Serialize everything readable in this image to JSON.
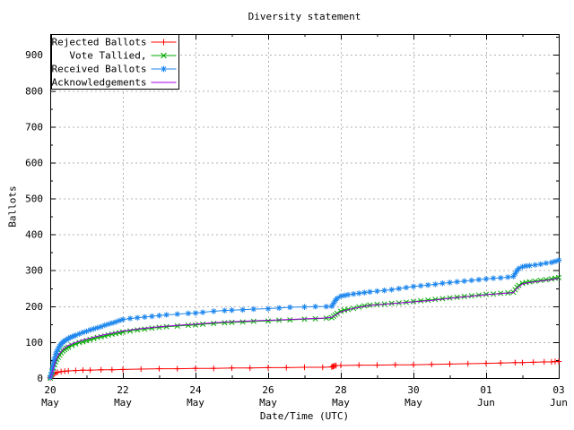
{
  "chart_data": {
    "type": "line",
    "title": "Diversity statement",
    "xlabel": "Date/Time (UTC)",
    "ylabel": "Ballots",
    "x_unit": "days since 20 May 00:00 (UTC)",
    "xlim": [
      0,
      14
    ],
    "ylim": [
      0,
      958
    ],
    "grid": true,
    "legend_position": "top-left",
    "colors": {
      "background": "#ffffff",
      "border": "#000000",
      "grid": "#b3b3b3",
      "rejected": "#ff0000",
      "tallied": "#00a800",
      "received": "#1c86ee",
      "acknowledgements": "#a000e0"
    },
    "y_major_ticks": [
      0,
      100,
      200,
      300,
      400,
      500,
      600,
      700,
      800,
      900
    ],
    "y_minor_step": 50,
    "x_minor_step": 1,
    "x_major_ticks": [
      {
        "day": 0,
        "line1": "20",
        "line2": "May"
      },
      {
        "day": 2,
        "line1": "22",
        "line2": "May"
      },
      {
        "day": 4,
        "line1": "24",
        "line2": "May"
      },
      {
        "day": 6,
        "line1": "26",
        "line2": "May"
      },
      {
        "day": 8,
        "line1": "28",
        "line2": "May"
      },
      {
        "day": 10,
        "line1": "30",
        "line2": "May"
      },
      {
        "day": 12,
        "line1": "01",
        "line2": "Jun"
      },
      {
        "day": 14,
        "line1": "03",
        "line2": "Jun"
      }
    ],
    "series": [
      {
        "name": "Rejected Ballots",
        "color_key": "rejected",
        "marker": "plus",
        "points": [
          [
            0,
            0
          ],
          [
            0.05,
            6
          ],
          [
            0.1,
            11
          ],
          [
            0.15,
            14
          ],
          [
            0.2,
            16
          ],
          [
            0.3,
            18
          ],
          [
            0.4,
            19
          ],
          [
            0.5,
            20
          ],
          [
            0.7,
            21
          ],
          [
            0.9,
            22
          ],
          [
            1.1,
            22
          ],
          [
            1.4,
            23
          ],
          [
            1.7,
            23
          ],
          [
            2,
            24
          ],
          [
            2.5,
            25
          ],
          [
            3,
            26
          ],
          [
            3.5,
            26
          ],
          [
            4,
            27
          ],
          [
            4.5,
            27
          ],
          [
            5,
            28
          ],
          [
            5.5,
            28
          ],
          [
            6,
            29
          ],
          [
            6.5,
            29
          ],
          [
            7,
            30
          ],
          [
            7.5,
            30
          ],
          [
            7.75,
            31
          ],
          [
            7.78,
            32
          ],
          [
            7.8,
            33
          ],
          [
            7.83,
            34
          ],
          [
            7.87,
            35
          ],
          [
            8,
            35
          ],
          [
            8.5,
            36
          ],
          [
            9,
            36
          ],
          [
            9.5,
            37
          ],
          [
            10,
            37
          ],
          [
            10.5,
            38
          ],
          [
            11,
            39
          ],
          [
            11.5,
            40
          ],
          [
            12,
            41
          ],
          [
            12.4,
            42
          ],
          [
            12.8,
            43
          ],
          [
            13,
            43
          ],
          [
            13.3,
            44
          ],
          [
            13.6,
            45
          ],
          [
            13.8,
            45
          ],
          [
            13.9,
            46
          ],
          [
            14,
            46
          ]
        ]
      },
      {
        "name": "Vote Tallied,",
        "color_key": "tallied",
        "marker": "cross",
        "points": [
          [
            0,
            0
          ],
          [
            0.03,
            8
          ],
          [
            0.06,
            18
          ],
          [
            0.09,
            28
          ],
          [
            0.12,
            37
          ],
          [
            0.15,
            45
          ],
          [
            0.18,
            52
          ],
          [
            0.22,
            58
          ],
          [
            0.26,
            64
          ],
          [
            0.3,
            70
          ],
          [
            0.35,
            75
          ],
          [
            0.4,
            79
          ],
          [
            0.45,
            83
          ],
          [
            0.5,
            86
          ],
          [
            0.6,
            91
          ],
          [
            0.7,
            95
          ],
          [
            0.8,
            99
          ],
          [
            0.9,
            101
          ],
          [
            1,
            104
          ],
          [
            1.1,
            107
          ],
          [
            1.2,
            110
          ],
          [
            1.3,
            113
          ],
          [
            1.4,
            115
          ],
          [
            1.5,
            117
          ],
          [
            1.6,
            120
          ],
          [
            1.7,
            122
          ],
          [
            1.8,
            124
          ],
          [
            1.9,
            126
          ],
          [
            2,
            128
          ],
          [
            2.2,
            131
          ],
          [
            2.4,
            134
          ],
          [
            2.6,
            136
          ],
          [
            2.8,
            139
          ],
          [
            3,
            141
          ],
          [
            3.2,
            143
          ],
          [
            3.5,
            145
          ],
          [
            3.8,
            147
          ],
          [
            4,
            148
          ],
          [
            4.2,
            150
          ],
          [
            4.5,
            152
          ],
          [
            4.8,
            154
          ],
          [
            5,
            155
          ],
          [
            5.3,
            156
          ],
          [
            5.6,
            158
          ],
          [
            6,
            159
          ],
          [
            6.3,
            161
          ],
          [
            6.6,
            162
          ],
          [
            7,
            164
          ],
          [
            7.3,
            165
          ],
          [
            7.6,
            167
          ],
          [
            7.75,
            168
          ],
          [
            7.8,
            172
          ],
          [
            7.85,
            176
          ],
          [
            7.9,
            180
          ],
          [
            8,
            186
          ],
          [
            8.1,
            189
          ],
          [
            8.2,
            191
          ],
          [
            8.35,
            194
          ],
          [
            8.5,
            198
          ],
          [
            8.65,
            201
          ],
          [
            8.8,
            203
          ],
          [
            9,
            205
          ],
          [
            9.2,
            206
          ],
          [
            9.4,
            208
          ],
          [
            9.6,
            209
          ],
          [
            9.8,
            211
          ],
          [
            10,
            213
          ],
          [
            10.2,
            215
          ],
          [
            10.4,
            217
          ],
          [
            10.6,
            219
          ],
          [
            10.8,
            221
          ],
          [
            11,
            223
          ],
          [
            11.2,
            225
          ],
          [
            11.4,
            227
          ],
          [
            11.6,
            229
          ],
          [
            11.8,
            231
          ],
          [
            12,
            233
          ],
          [
            12.2,
            234
          ],
          [
            12.4,
            236
          ],
          [
            12.6,
            237
          ],
          [
            12.75,
            239
          ],
          [
            12.8,
            246
          ],
          [
            12.85,
            253
          ],
          [
            12.9,
            258
          ],
          [
            13,
            264
          ],
          [
            13.1,
            266
          ],
          [
            13.2,
            268
          ],
          [
            13.35,
            270
          ],
          [
            13.5,
            272
          ],
          [
            13.65,
            274
          ],
          [
            13.8,
            276
          ],
          [
            13.9,
            278
          ],
          [
            14,
            280
          ]
        ]
      },
      {
        "name": "Received Ballots",
        "color_key": "received",
        "marker": "asterisk",
        "points": [
          [
            0,
            2
          ],
          [
            0.02,
            8
          ],
          [
            0.04,
            16
          ],
          [
            0.06,
            26
          ],
          [
            0.08,
            36
          ],
          [
            0.1,
            46
          ],
          [
            0.12,
            55
          ],
          [
            0.15,
            66
          ],
          [
            0.18,
            74
          ],
          [
            0.22,
            82
          ],
          [
            0.26,
            89
          ],
          [
            0.3,
            95
          ],
          [
            0.35,
            100
          ],
          [
            0.4,
            104
          ],
          [
            0.45,
            107
          ],
          [
            0.5,
            110
          ],
          [
            0.55,
            113
          ],
          [
            0.6,
            115
          ],
          [
            0.65,
            117
          ],
          [
            0.7,
            119
          ],
          [
            0.8,
            123
          ],
          [
            0.9,
            127
          ],
          [
            1,
            130
          ],
          [
            1.1,
            134
          ],
          [
            1.2,
            137
          ],
          [
            1.3,
            140
          ],
          [
            1.4,
            143
          ],
          [
            1.5,
            147
          ],
          [
            1.6,
            150
          ],
          [
            1.7,
            153
          ],
          [
            1.8,
            156
          ],
          [
            1.9,
            160
          ],
          [
            2,
            163
          ],
          [
            2.2,
            166
          ],
          [
            2.4,
            168
          ],
          [
            2.6,
            170
          ],
          [
            2.8,
            172
          ],
          [
            3,
            174
          ],
          [
            3.2,
            176
          ],
          [
            3.5,
            178
          ],
          [
            3.8,
            180
          ],
          [
            4,
            181
          ],
          [
            4.2,
            183
          ],
          [
            4.5,
            186
          ],
          [
            4.8,
            188
          ],
          [
            5,
            189
          ],
          [
            5.3,
            190
          ],
          [
            5.6,
            192
          ],
          [
            6,
            193
          ],
          [
            6.3,
            195
          ],
          [
            6.6,
            197
          ],
          [
            7,
            198
          ],
          [
            7.3,
            199
          ],
          [
            7.6,
            199
          ],
          [
            7.75,
            200
          ],
          [
            7.8,
            208
          ],
          [
            7.85,
            216
          ],
          [
            7.9,
            222
          ],
          [
            8,
            228
          ],
          [
            8.1,
            230
          ],
          [
            8.2,
            232
          ],
          [
            8.35,
            234
          ],
          [
            8.5,
            236
          ],
          [
            8.65,
            238
          ],
          [
            8.8,
            240
          ],
          [
            9,
            242
          ],
          [
            9.2,
            244
          ],
          [
            9.4,
            246
          ],
          [
            9.6,
            249
          ],
          [
            9.8,
            252
          ],
          [
            10,
            255
          ],
          [
            10.2,
            257
          ],
          [
            10.4,
            259
          ],
          [
            10.6,
            261
          ],
          [
            10.8,
            264
          ],
          [
            11,
            266
          ],
          [
            11.2,
            268
          ],
          [
            11.4,
            270
          ],
          [
            11.6,
            272
          ],
          [
            11.8,
            274
          ],
          [
            12,
            276
          ],
          [
            12.2,
            278
          ],
          [
            12.4,
            279
          ],
          [
            12.6,
            281
          ],
          [
            12.75,
            283
          ],
          [
            12.8,
            291
          ],
          [
            12.85,
            299
          ],
          [
            12.9,
            305
          ],
          [
            13,
            310
          ],
          [
            13.1,
            312
          ],
          [
            13.2,
            313
          ],
          [
            13.35,
            315
          ],
          [
            13.5,
            317
          ],
          [
            13.65,
            320
          ],
          [
            13.8,
            322
          ],
          [
            13.9,
            325
          ],
          [
            14,
            328
          ]
        ]
      },
      {
        "name": "Acknowledgements",
        "color_key": "acknowledgements",
        "marker": "none",
        "points": [
          [
            0,
            0
          ],
          [
            0.05,
            14
          ],
          [
            0.1,
            32
          ],
          [
            0.15,
            48
          ],
          [
            0.2,
            60
          ],
          [
            0.3,
            74
          ],
          [
            0.4,
            84
          ],
          [
            0.5,
            91
          ],
          [
            0.7,
            99
          ],
          [
            0.9,
            106
          ],
          [
            1,
            109
          ],
          [
            1.25,
            115
          ],
          [
            1.5,
            121
          ],
          [
            1.75,
            126
          ],
          [
            2,
            131
          ],
          [
            2.5,
            138
          ],
          [
            3,
            143
          ],
          [
            3.5,
            147
          ],
          [
            4,
            150
          ],
          [
            4.5,
            154
          ],
          [
            5,
            157
          ],
          [
            5.5,
            159
          ],
          [
            6,
            161
          ],
          [
            6.5,
            163
          ],
          [
            7,
            165
          ],
          [
            7.5,
            167
          ],
          [
            7.75,
            169
          ],
          [
            7.85,
            175
          ],
          [
            8,
            184
          ],
          [
            8.2,
            190
          ],
          [
            8.5,
            197
          ],
          [
            8.8,
            202
          ],
          [
            9,
            204
          ],
          [
            9.5,
            208
          ],
          [
            10,
            212
          ],
          [
            10.5,
            216
          ],
          [
            11,
            222
          ],
          [
            11.5,
            227
          ],
          [
            12,
            232
          ],
          [
            12.4,
            235
          ],
          [
            12.75,
            238
          ],
          [
            12.85,
            250
          ],
          [
            13,
            262
          ],
          [
            13.2,
            266
          ],
          [
            13.5,
            270
          ],
          [
            13.8,
            274
          ],
          [
            14,
            278
          ]
        ]
      }
    ]
  }
}
